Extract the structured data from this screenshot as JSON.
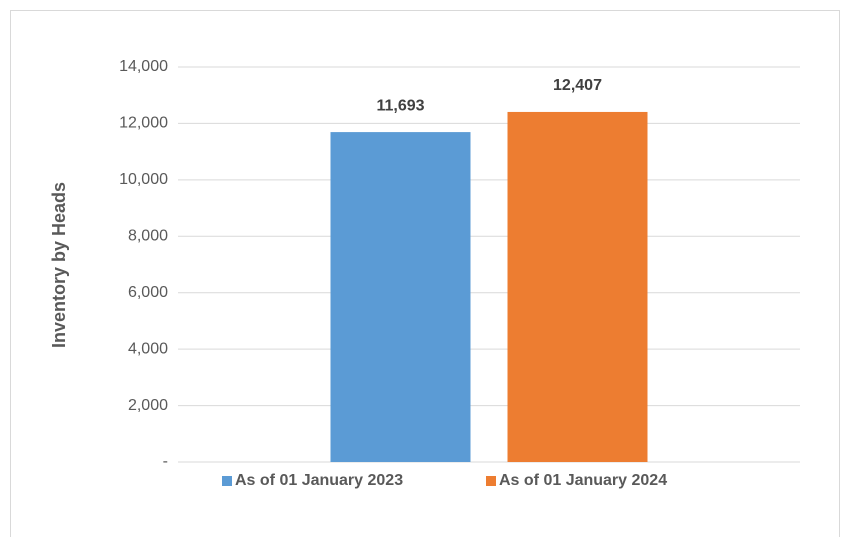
{
  "chart_data": {
    "type": "bar",
    "y_label": "Inventory by Heads",
    "categories": [
      null
    ],
    "series": [
      {
        "name": "As of 01 January 2023",
        "color": "#5b9bd5",
        "values": [
          11693
        ],
        "value_labels": [
          "11,693"
        ]
      },
      {
        "name": "As of 01 January 2024",
        "color": "#ed7d31",
        "values": [
          12407
        ],
        "value_labels": [
          "12,407"
        ]
      }
    ],
    "ylim": [
      0,
      14000
    ],
    "yticks": [
      {
        "value": 0,
        "label": "-"
      },
      {
        "value": 2000,
        "label": "2,000"
      },
      {
        "value": 4000,
        "label": "4,000"
      },
      {
        "value": 6000,
        "label": "6,000"
      },
      {
        "value": 8000,
        "label": "8,000"
      },
      {
        "value": 10000,
        "label": "10,000"
      },
      {
        "value": 12000,
        "label": "12,000"
      },
      {
        "value": 14000,
        "label": "14,000"
      }
    ],
    "grid": true,
    "legend": "bottom"
  }
}
